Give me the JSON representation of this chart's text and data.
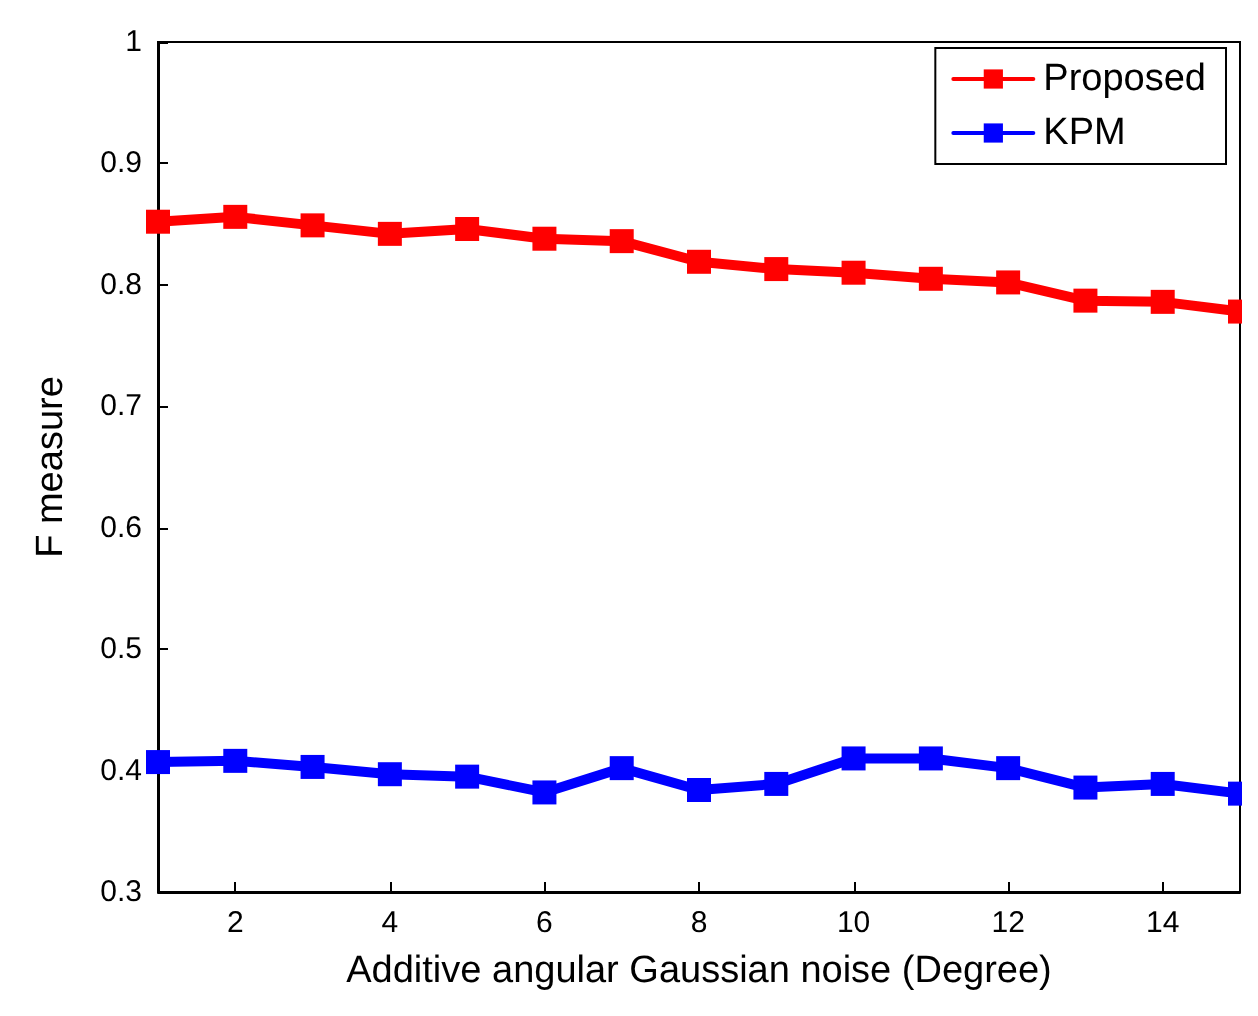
{
  "chart_data": {
    "type": "line",
    "xlabel": "Additive angular Gaussian noise (Degree)",
    "ylabel": "F measure",
    "x": [
      1,
      2,
      3,
      4,
      5,
      6,
      7,
      8,
      9,
      10,
      11,
      12,
      13,
      14,
      15
    ],
    "series": [
      {
        "name": "Proposed",
        "color": "#ff0000",
        "values": [
          0.852,
          0.856,
          0.849,
          0.842,
          0.846,
          0.838,
          0.836,
          0.819,
          0.813,
          0.81,
          0.805,
          0.802,
          0.787,
          0.786,
          0.778
        ]
      },
      {
        "name": "KPM",
        "color": "#0000ff",
        "values": [
          0.407,
          0.408,
          0.403,
          0.397,
          0.395,
          0.382,
          0.402,
          0.384,
          0.389,
          0.41,
          0.41,
          0.402,
          0.386,
          0.389,
          0.381
        ]
      }
    ],
    "xlim": [
      1,
      15
    ],
    "xticks": [
      2,
      4,
      6,
      8,
      10,
      12,
      14
    ],
    "ylim": [
      0.3,
      1
    ],
    "yticks": [
      0.3,
      0.4,
      0.5,
      0.6,
      0.7,
      0.8,
      0.9,
      1
    ],
    "grid": false,
    "legend": "top right",
    "marker": "square",
    "line_style": "solid"
  }
}
